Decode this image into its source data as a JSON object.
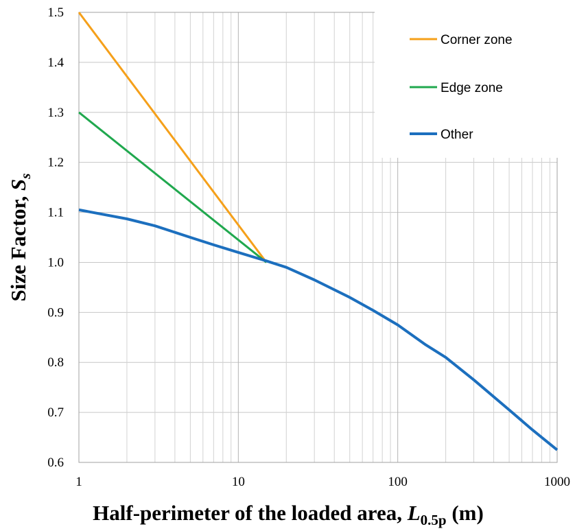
{
  "chart_data": {
    "type": "line",
    "xscale": "log",
    "xlim": [
      1,
      1000
    ],
    "ylim": [
      0.6,
      1.5
    ],
    "xticks": [
      1,
      10,
      100,
      1000
    ],
    "xtick_labels": [
      "1",
      "10",
      "100",
      "1000"
    ],
    "yticks": [
      0.6,
      0.7,
      0.8,
      0.9,
      1.0,
      1.1,
      1.2,
      1.3,
      1.4,
      1.5
    ],
    "ytick_labels": [
      "0.6",
      "0.7",
      "0.8",
      "0.9",
      "1.0",
      "1.1",
      "1.2",
      "1.3",
      "1.4",
      "1.5"
    ],
    "grid": true,
    "legend_position": "top-right",
    "xlabel": {
      "main": "Half-perimeter of the loaded area, ",
      "symbol": "L",
      "subscript": "0.5p",
      "unit": " (m)"
    },
    "ylabel": {
      "main": "Size Factor, ",
      "symbol": "S",
      "subscript": "s"
    },
    "series": [
      {
        "name": "Corner zone",
        "color": "#f5a01a",
        "x": [
          1,
          15
        ],
        "y": [
          1.5,
          1.0
        ]
      },
      {
        "name": "Edge zone",
        "color": "#20a84e",
        "x": [
          1,
          15
        ],
        "y": [
          1.3,
          1.0
        ]
      },
      {
        "name": "Other",
        "color": "#1c6fbe",
        "x": [
          1,
          2,
          3,
          5,
          7,
          10,
          15,
          20,
          30,
          50,
          70,
          100,
          150,
          200,
          300,
          500,
          700,
          1000
        ],
        "y": [
          1.105,
          1.087,
          1.073,
          1.05,
          1.035,
          1.02,
          1.003,
          0.99,
          0.965,
          0.93,
          0.904,
          0.875,
          0.835,
          0.81,
          0.765,
          0.705,
          0.665,
          0.625
        ]
      }
    ]
  }
}
